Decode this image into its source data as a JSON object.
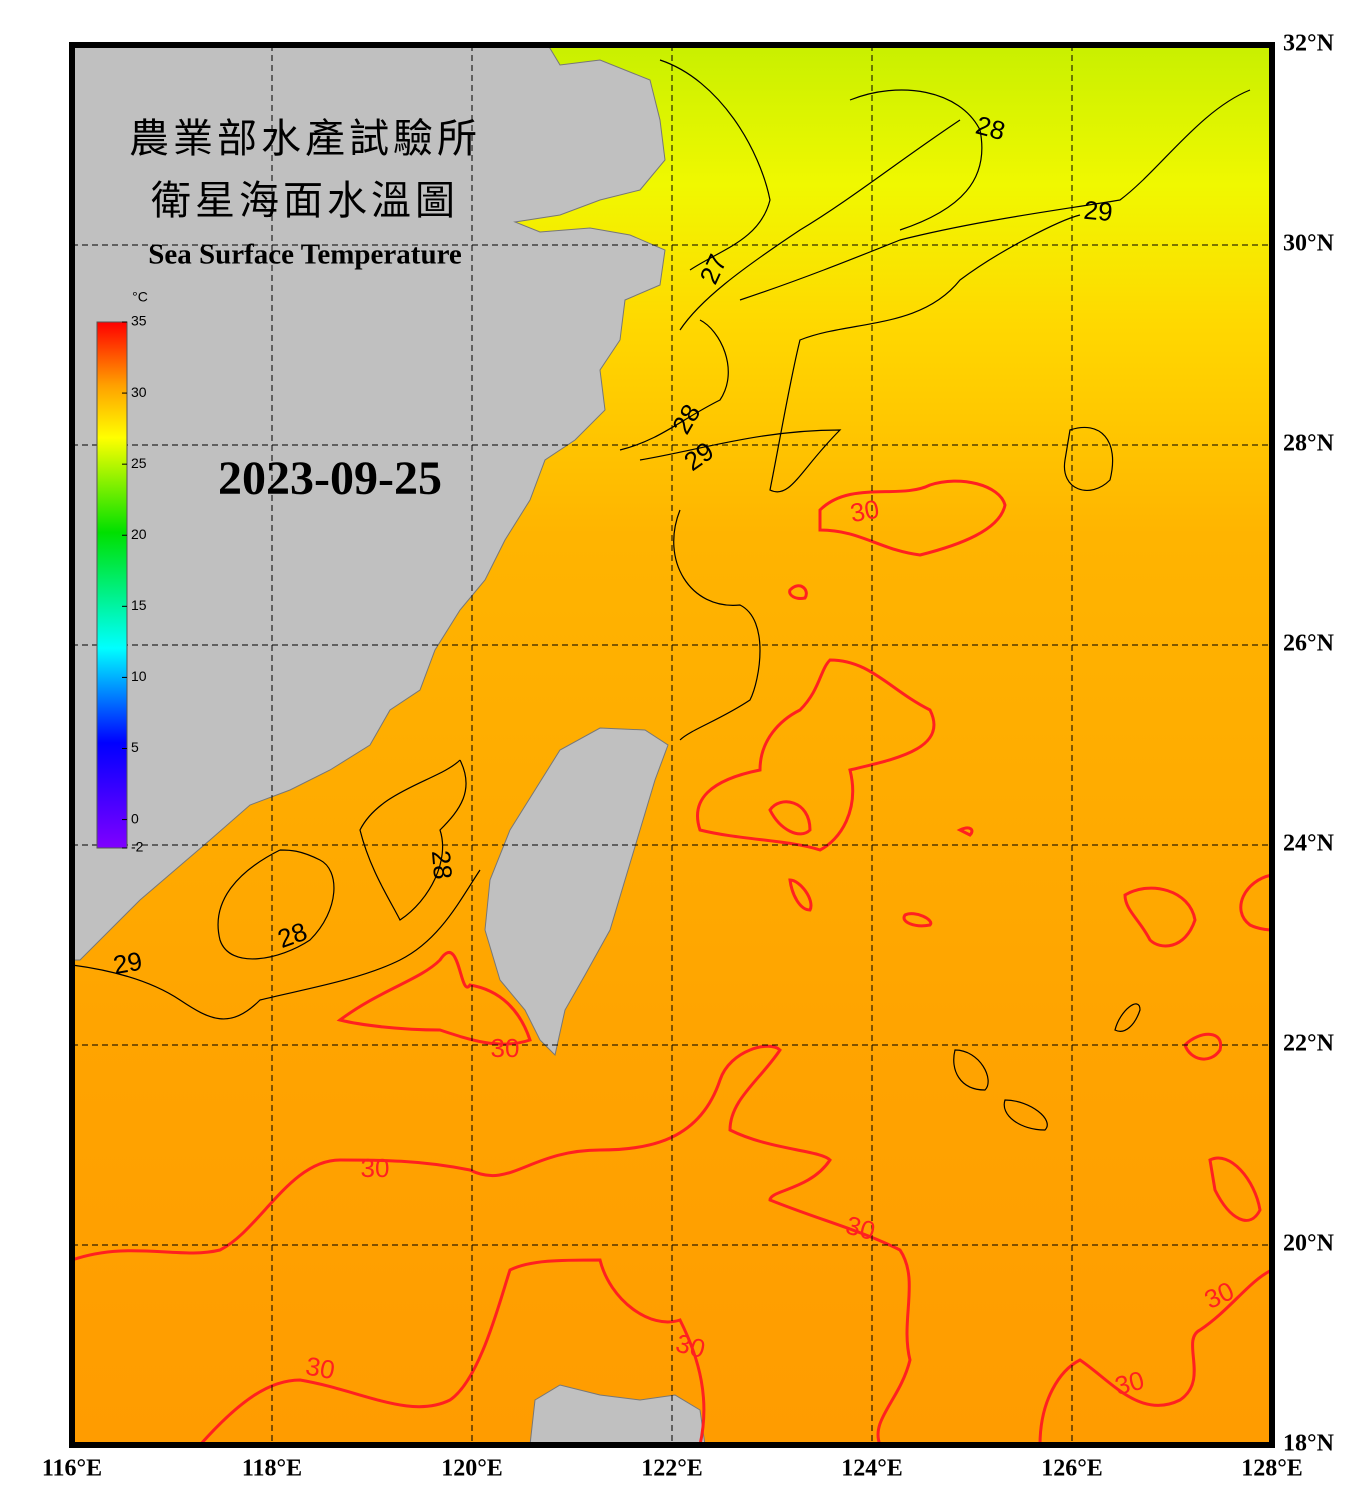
{
  "header": {
    "title_zh_1": "農業部水產試驗所",
    "title_zh_2": "衛星海面水溫圖",
    "title_en": "Sea Surface Temperature",
    "date": "2023-09-25"
  },
  "map": {
    "xlim": [
      116,
      128
    ],
    "ylim": [
      18,
      32
    ],
    "xticks": [
      {
        "value": 116,
        "label": "116°E"
      },
      {
        "value": 118,
        "label": "118°E"
      },
      {
        "value": 120,
        "label": "120°E"
      },
      {
        "value": 122,
        "label": "122°E"
      },
      {
        "value": 124,
        "label": "124°E"
      },
      {
        "value": 126,
        "label": "126°E"
      },
      {
        "value": 128,
        "label": "128°E"
      }
    ],
    "yticks": [
      {
        "value": 18,
        "label": "18°N"
      },
      {
        "value": 20,
        "label": "20°N"
      },
      {
        "value": 22,
        "label": "22°N"
      },
      {
        "value": 24,
        "label": "24°N"
      },
      {
        "value": 26,
        "label": "26°N"
      },
      {
        "value": 28,
        "label": "28°N"
      },
      {
        "value": 30,
        "label": "30°N"
      },
      {
        "value": 32,
        "label": "32°N"
      }
    ],
    "grid": true,
    "contour_levels": [
      27,
      28,
      29,
      30
    ]
  },
  "colorbar": {
    "unit": "°C",
    "lim": [
      -2,
      35
    ],
    "ticks": [
      -2,
      0,
      5,
      10,
      15,
      20,
      25,
      30,
      35
    ]
  }
}
